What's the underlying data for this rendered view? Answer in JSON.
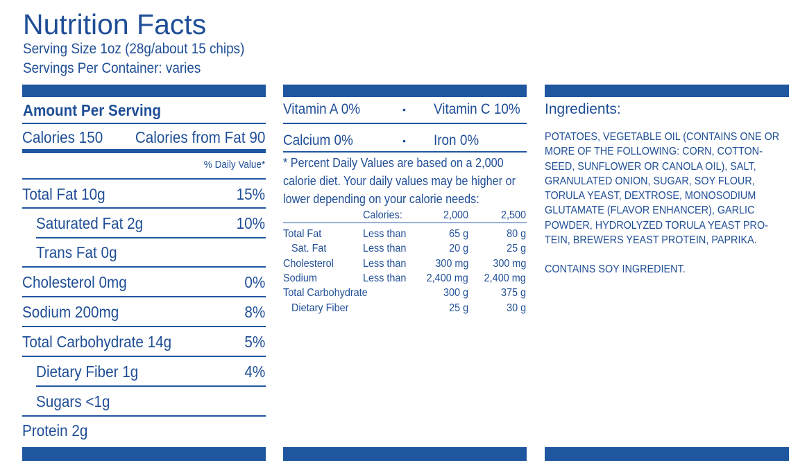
{
  "title": "Nutrition Facts",
  "serving_size": "Serving Size 1oz (28g/about 15 chips)",
  "servings_per_container": "Servings Per Container:  varies",
  "amount_per_serving": "Amount Per Serving",
  "calories": "Calories 150",
  "calories_from_fat": "Calories from Fat 90",
  "daily_value_header": "% Daily Value*",
  "nutrients": [
    {
      "label": "Total Fat 10g",
      "value": "15%"
    },
    {
      "label": "Saturated Fat 2g",
      "value": "10%"
    },
    {
      "label": "Trans Fat 0g",
      "value": ""
    },
    {
      "label": "Cholesterol 0mg",
      "value": "0%"
    },
    {
      "label": "Sodium 200mg",
      "value": "8%"
    },
    {
      "label": "Total Carbohydrate 14g",
      "value": "5%"
    },
    {
      "label": "Dietary Fiber 1g",
      "value": "4%"
    },
    {
      "label": "Sugars <1g",
      "value": ""
    },
    {
      "label": "Protein 2g",
      "value": ""
    }
  ],
  "vitamins": {
    "vitamin_a": "Vitamin A 0%",
    "vitamin_c": "Vitamin C 10%",
    "calcium": "Calcium 0%",
    "iron": "Iron 0%",
    "bullet": "•"
  },
  "footnote": "* Percent Daily Values are based on a 2,000 calorie diet. Your daily values may be higher or lower depending on your calorie needs:",
  "footnote_table": {
    "headers": [
      "",
      "Calories:",
      "2,000",
      "2,500"
    ],
    "rows": [
      [
        "Total Fat",
        "Less than",
        "65 g",
        "80 g"
      ],
      [
        "Sat. Fat",
        "Less than",
        "20 g",
        "25 g"
      ],
      [
        "Cholesterol",
        "Less than",
        "300 mg",
        "300 mg"
      ],
      [
        "Sodium",
        "Less than",
        "2,400 mg",
        "2,400 mg"
      ],
      [
        "Total Carbohydrate",
        "",
        "300 g",
        "375 g"
      ],
      [
        "Dietary Fiber",
        "",
        "25 g",
        "30 g"
      ]
    ]
  },
  "ingredients_title": "Ingredients:",
  "ingredients_lines": [
    "POTATOES, VEGETABLE OIL (CONTAINS ONE OR",
    "MORE OF THE FOLLOWING: CORN, COTTON-",
    "SEED, SUNFLOWER OR CANOLA OIL), SALT,",
    "GRANULATED ONION, SUGAR, SOY FLOUR,",
    "TORULA YEAST, DEXTROSE, MONOSODIUM",
    "GLUTAMATE (FLAVOR ENHANCER), GARLIC",
    "POWDER, HYDROLYZED TORULA YEAST PRO-",
    "TEIN, BREWERS YEAST PROTEIN, PAPRIKA."
  ],
  "allergen": "CONTAINS SOY INGREDIENT.",
  "colors": {
    "primary": "#1f56a0",
    "text": "#1f4e96",
    "background": "#ffffff"
  }
}
